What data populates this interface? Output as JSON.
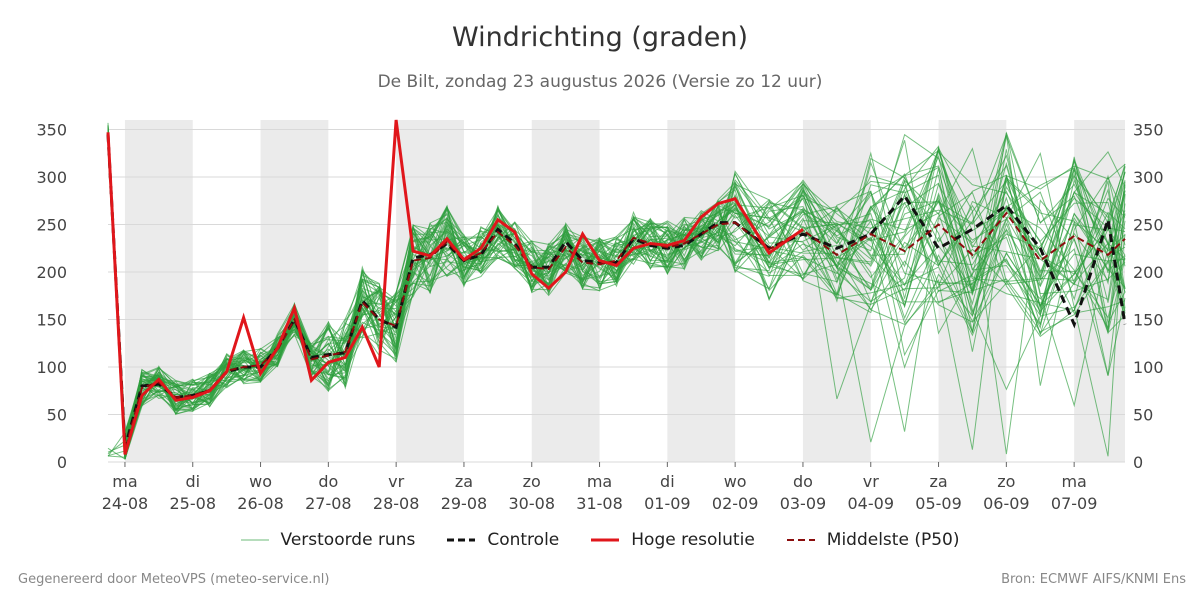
{
  "title": "Windrichting (graden)",
  "subtitle": "De Bilt, zondag 23 augustus 2026 (Versie zo 12 uur)",
  "footer_left": "Gegenereerd door MeteoVPS (meteo-service.nl)",
  "footer_right": "Bron: ECMWF AIFS/KNMI Ens",
  "legend": [
    {
      "label": "Verstoorde runs",
      "style": "ensemble"
    },
    {
      "label": "Controle",
      "style": "control"
    },
    {
      "label": "Hoge resolutie",
      "style": "hires"
    },
    {
      "label": "Middelste (P50)",
      "style": "median"
    }
  ],
  "colors": {
    "ensemble": "#2e9e3e",
    "control": "#111111",
    "hires": "#e0161b",
    "median": "#8b0d0d",
    "shade": "#ebebeb",
    "grid": "#d9d9d9"
  },
  "chart_data": {
    "type": "line",
    "xlabel": "",
    "ylabel": "",
    "ylim": [
      0,
      360
    ],
    "yticks": [
      0,
      50,
      100,
      150,
      200,
      250,
      300,
      350
    ],
    "xlim": [
      -0.25,
      14.75
    ],
    "days": [
      {
        "weekday": "ma",
        "date": "24-08",
        "shaded": true
      },
      {
        "weekday": "di",
        "date": "25-08",
        "shaded": false
      },
      {
        "weekday": "wo",
        "date": "26-08",
        "shaded": true
      },
      {
        "weekday": "do",
        "date": "27-08",
        "shaded": false
      },
      {
        "weekday": "vr",
        "date": "28-08",
        "shaded": true
      },
      {
        "weekday": "za",
        "date": "29-08",
        "shaded": false
      },
      {
        "weekday": "zo",
        "date": "30-08",
        "shaded": true
      },
      {
        "weekday": "ma",
        "date": "31-08",
        "shaded": false
      },
      {
        "weekday": "di",
        "date": "01-09",
        "shaded": true
      },
      {
        "weekday": "wo",
        "date": "02-09",
        "shaded": false
      },
      {
        "weekday": "do",
        "date": "03-09",
        "shaded": true
      },
      {
        "weekday": "vr",
        "date": "04-09",
        "shaded": false
      },
      {
        "weekday": "za",
        "date": "05-09",
        "shaded": true
      },
      {
        "weekday": "zo",
        "date": "06-09",
        "shaded": false
      },
      {
        "weekday": "ma",
        "date": "07-09",
        "shaded": true
      }
    ],
    "x_day_offsets": [
      -0.25,
      0,
      0.25,
      0.5,
      0.75,
      1,
      1.25,
      1.5,
      1.75,
      2,
      2.25,
      2.5,
      2.75,
      3,
      3.25,
      3.5,
      3.75,
      4,
      4.25,
      4.5,
      4.75,
      5,
      5.25,
      5.5,
      5.75,
      6,
      6.25,
      6.5,
      6.75,
      7,
      7.25,
      7.5,
      7.75,
      8,
      8.25,
      8.5,
      8.75,
      9,
      9.5,
      10,
      10.5,
      11,
      11.5,
      12,
      12.5,
      13,
      13.5,
      14,
      14.5,
      14.75
    ],
    "series": [
      {
        "name": "Controle",
        "values": [
          345,
          15,
          80,
          82,
          68,
          70,
          75,
          95,
          100,
          100,
          120,
          150,
          110,
          113,
          115,
          170,
          150,
          142,
          215,
          218,
          230,
          212,
          218,
          245,
          230,
          205,
          205,
          232,
          212,
          210,
          210,
          235,
          228,
          225,
          228,
          240,
          252,
          252,
          225,
          240,
          225,
          240,
          280,
          225,
          245,
          270,
          225,
          145,
          255,
          145
        ]
      },
      {
        "name": "Hoge resolutie",
        "values": [
          347,
          8,
          70,
          87,
          65,
          68,
          75,
          95,
          152,
          93,
          120,
          162,
          86,
          105,
          110,
          142,
          100,
          360,
          222,
          217,
          235,
          213,
          225,
          255,
          242,
          198,
          183,
          200,
          240,
          212,
          207,
          225,
          230,
          228,
          233,
          258,
          272,
          277,
          220,
          245
        ]
      },
      {
        "name": "Middelste (P50)",
        "values": [
          343,
          12,
          78,
          84,
          68,
          70,
          76,
          96,
          100,
          102,
          118,
          150,
          108,
          112,
          116,
          168,
          150,
          143,
          212,
          215,
          232,
          212,
          220,
          242,
          228,
          205,
          203,
          226,
          210,
          208,
          212,
          236,
          230,
          226,
          230,
          240,
          250,
          252,
          224,
          244,
          218,
          240,
          222,
          250,
          218,
          262,
          212,
          238,
          218,
          235
        ]
      }
    ]
  }
}
